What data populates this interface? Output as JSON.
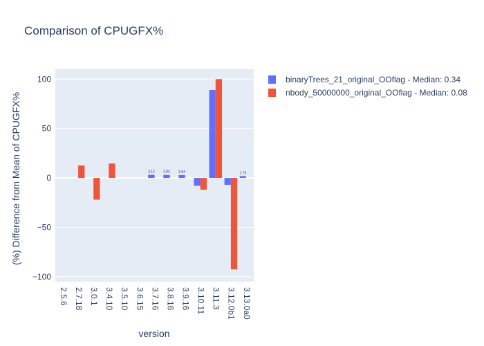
{
  "chart_data": {
    "type": "bar",
    "title": "Comparison of CPUGFX%",
    "xlabel": "version",
    "ylabel": "(%) Difference from Mean of CPUGFX%",
    "categories": [
      "2.5.6",
      "2.7.18",
      "3.0.1",
      "3.4.10",
      "3.5.10",
      "3.6.15",
      "3.7.16",
      "3.8.16",
      "3.9.16",
      "3.10.11",
      "3.11.3",
      "3.12.0b1",
      "3.13.0a0"
    ],
    "yticks": [
      100,
      50,
      0,
      -50,
      -100
    ],
    "ytick_labels": [
      "100",
      "50",
      "0",
      "−50",
      "−100"
    ],
    "ylim": [
      -105,
      110
    ],
    "grid": true,
    "legend_position": "top-right",
    "series": [
      {
        "name": "binaryTrees_21_original_OOflag - Median: 0.34",
        "color": "#636efa",
        "values": [
          null,
          null,
          null,
          null,
          0,
          0,
          3.12,
          3.03,
          2.94,
          -8,
          89,
          -7,
          1.79
        ],
        "text": [
          "",
          "",
          "",
          "",
          "",
          "",
          "3.12",
          "3.03",
          "2.94",
          "",
          "",
          "",
          "1.79"
        ]
      },
      {
        "name": "nbody_50000000_original_OOflag - Median: 0.08",
        "color": "#ef553b",
        "values": [
          null,
          12.5,
          -22,
          14.5,
          0,
          0,
          0,
          0,
          0,
          -12,
          100,
          -92.5,
          null
        ],
        "text": [
          "",
          "",
          "",
          "",
          "",
          "",
          "",
          "",
          "",
          "",
          "",
          "",
          ""
        ]
      }
    ]
  }
}
